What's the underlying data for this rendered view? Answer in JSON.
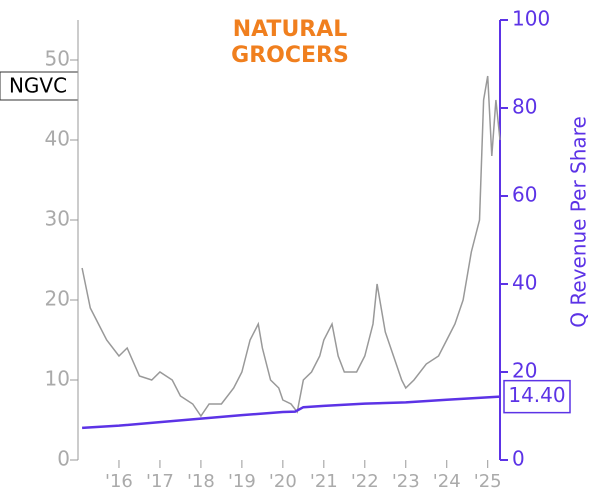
{
  "chart_data": {
    "type": "line",
    "title": "NGVC",
    "logo": [
      "NATURAL",
      "GROCERS"
    ],
    "y2label": "Q Revenue Per Share",
    "xlim": [
      2015,
      2025.3
    ],
    "xticks": [
      {
        "value": 2016,
        "label": "'16"
      },
      {
        "value": 2017,
        "label": "'17"
      },
      {
        "value": 2018,
        "label": "'18"
      },
      {
        "value": 2019,
        "label": "'19"
      },
      {
        "value": 2020,
        "label": "'20"
      },
      {
        "value": 2021,
        "label": "'21"
      },
      {
        "value": 2022,
        "label": "'22"
      },
      {
        "value": 2023,
        "label": "'23"
      },
      {
        "value": 2024,
        "label": "'24"
      },
      {
        "value": 2025,
        "label": "'25"
      }
    ],
    "ylim": [
      0,
      55
    ],
    "yticks": [
      0,
      10,
      20,
      30,
      40,
      50
    ],
    "y2lim": [
      0,
      100
    ],
    "y2ticks": [
      0,
      20,
      40,
      60,
      80,
      100
    ],
    "series": [
      {
        "name": "NGVC",
        "color": "#999999",
        "x": [
          2015.1,
          2015.3,
          2015.5,
          2015.7,
          2016.0,
          2016.2,
          2016.5,
          2016.8,
          2017.0,
          2017.3,
          2017.5,
          2017.8,
          2018.0,
          2018.2,
          2018.5,
          2018.8,
          2019.0,
          2019.2,
          2019.4,
          2019.5,
          2019.7,
          2019.9,
          2020.0,
          2020.2,
          2020.35,
          2020.5,
          2020.7,
          2020.9,
          2021.0,
          2021.2,
          2021.35,
          2021.5,
          2021.8,
          2022.0,
          2022.2,
          2022.3,
          2022.5,
          2022.7,
          2022.9,
          2023.0,
          2023.2,
          2023.5,
          2023.8,
          2024.0,
          2024.2,
          2024.4,
          2024.6,
          2024.8,
          2024.9,
          2025.0,
          2025.1,
          2025.2,
          2025.3
        ],
        "values": [
          24,
          19,
          17,
          15,
          13,
          14,
          10.5,
          10,
          11,
          10,
          8,
          7,
          5.5,
          7,
          7,
          9,
          11,
          15,
          17,
          14,
          10,
          9,
          7.5,
          7,
          6,
          10,
          11,
          13,
          15,
          17,
          13,
          11,
          11,
          13,
          17,
          22,
          16,
          13,
          10,
          9,
          10,
          12,
          13,
          15,
          17,
          20,
          26,
          30,
          45,
          48,
          38,
          45,
          40
        ]
      },
      {
        "name": "Q Revenue Per Share",
        "color": "#5c33e6",
        "axis": "y2",
        "x": [
          2015.1,
          2016.0,
          2017.0,
          2018.0,
          2019.0,
          2020.0,
          2020.3,
          2020.5,
          2021.0,
          2022.0,
          2023.0,
          2024.0,
          2025.3
        ],
        "values": [
          7.3,
          7.8,
          8.6,
          9.4,
          10.2,
          10.9,
          11.0,
          12.0,
          12.3,
          12.8,
          13.1,
          13.7,
          14.4
        ]
      }
    ],
    "annotations": [
      {
        "value": 14.4,
        "label": "14.40",
        "axis": "y2"
      }
    ]
  }
}
